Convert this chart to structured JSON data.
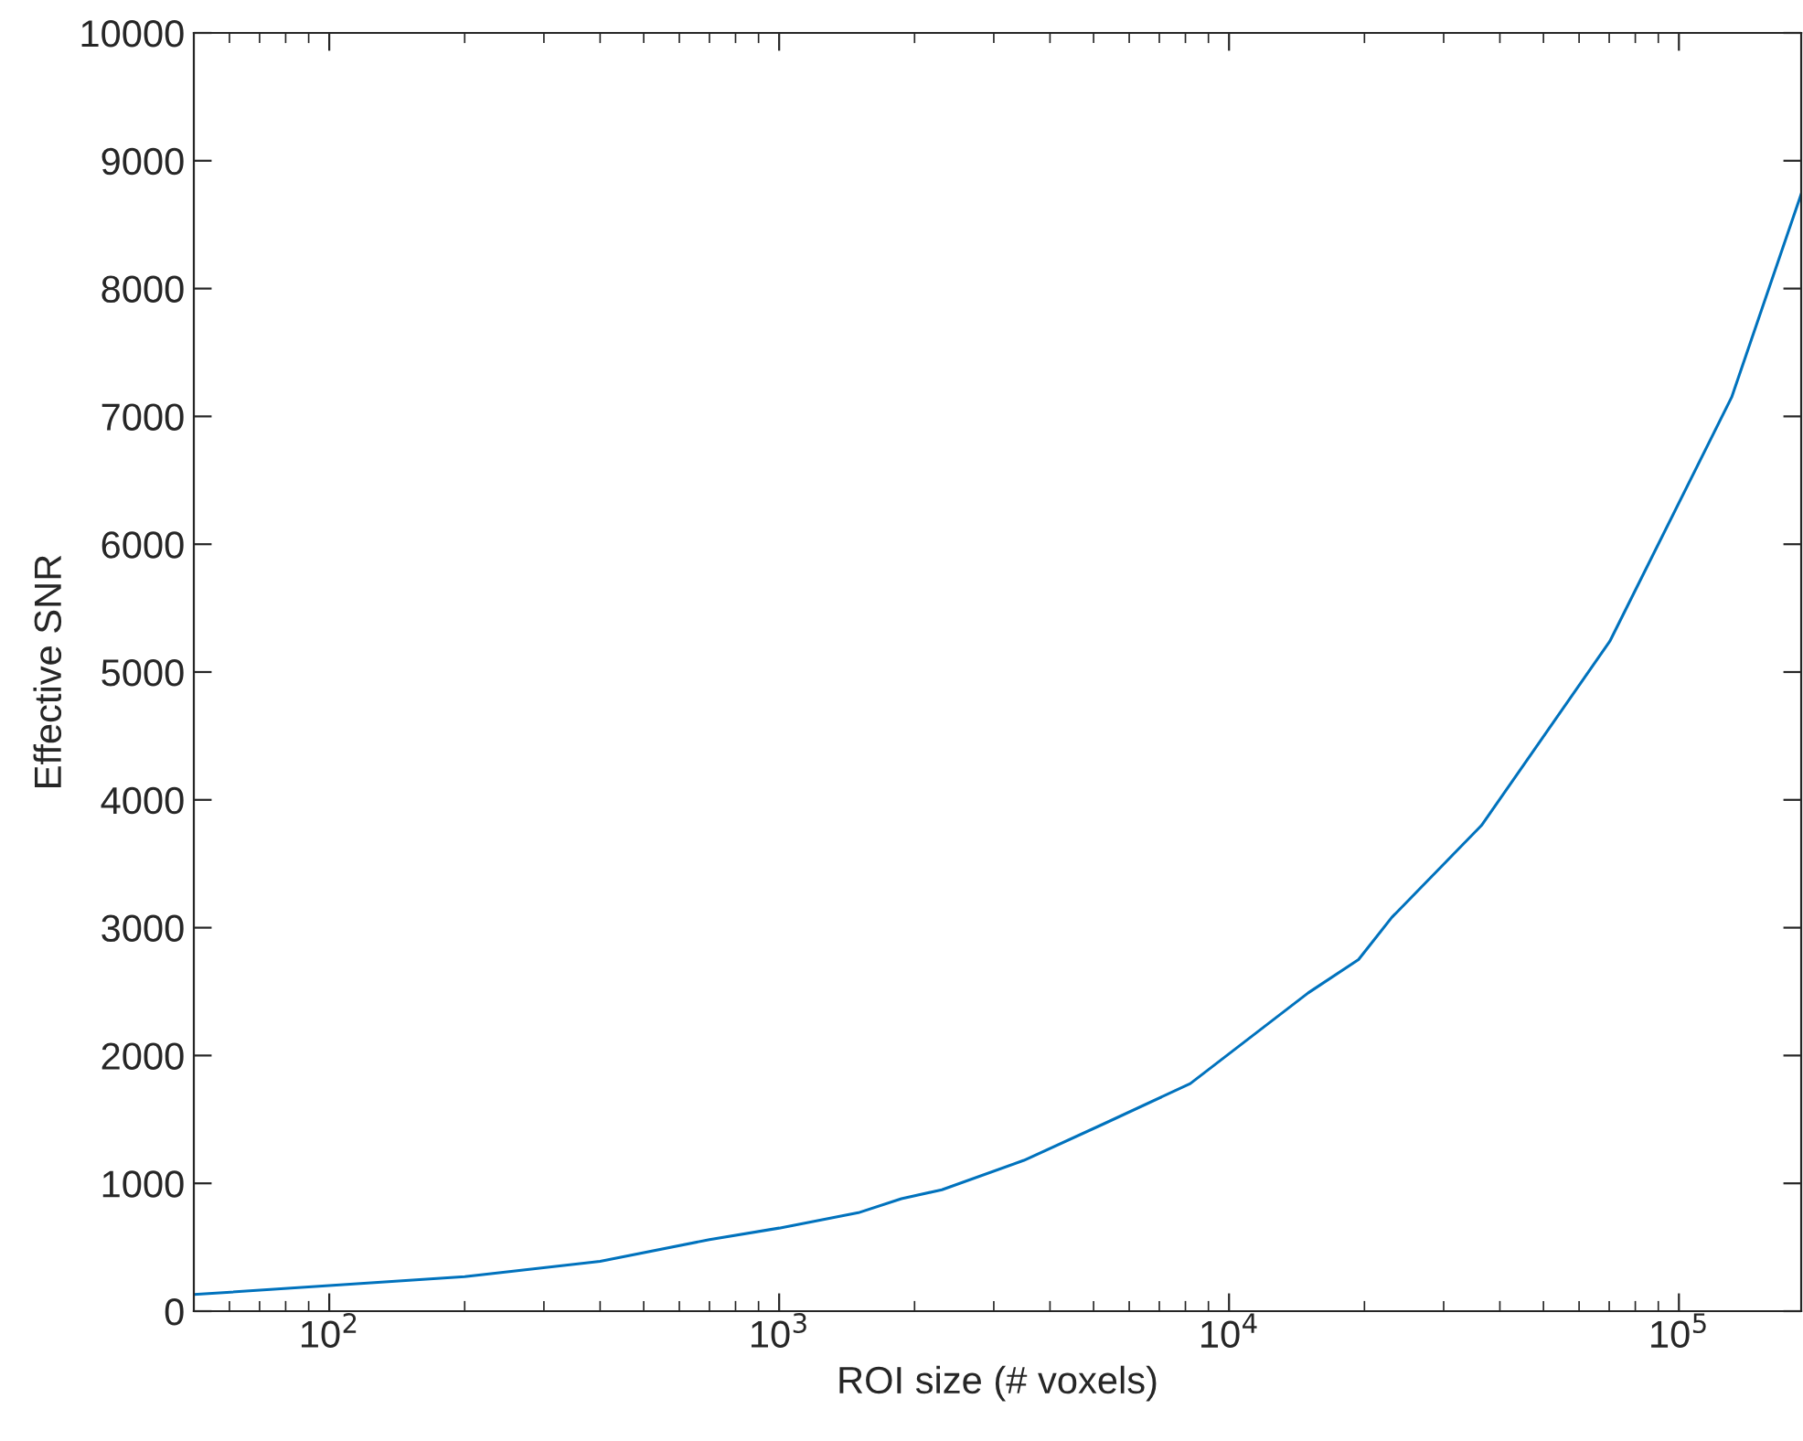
{
  "chart_data": {
    "type": "line",
    "xlabel": "ROI size (# voxels)",
    "ylabel": "Effective SNR",
    "log": "x",
    "grid": false,
    "marker": "none",
    "line_style": "solid",
    "x": [
      50,
      100,
      200,
      400,
      700,
      1000,
      1500,
      1870,
      2300,
      3500,
      5300,
      8200,
      15000,
      19400,
      23000,
      36400,
      70200,
      131000,
      187000
    ],
    "series": [
      {
        "color": "#0072bd",
        "values": [
          130,
          200,
          270,
          390,
          560,
          650,
          770,
          880,
          950,
          1180,
          1470,
          1780,
          2490,
          2750,
          3080,
          3800,
          5240,
          7150,
          8740
        ]
      }
    ],
    "xlim": [
      50,
      187000
    ],
    "xticks": [
      {
        "value": 100,
        "label": "10$^{2}$"
      },
      {
        "value": 1000,
        "label": "10$^{3}$"
      },
      {
        "value": 10000,
        "label": "10$^{4}$"
      },
      {
        "value": 100000,
        "label": "10$^{5}$"
      }
    ],
    "ylim": [
      0,
      10000
    ],
    "yticks": [
      0,
      1000,
      2000,
      3000,
      4000,
      5000,
      6000,
      7000,
      8000,
      9000,
      10000
    ]
  }
}
